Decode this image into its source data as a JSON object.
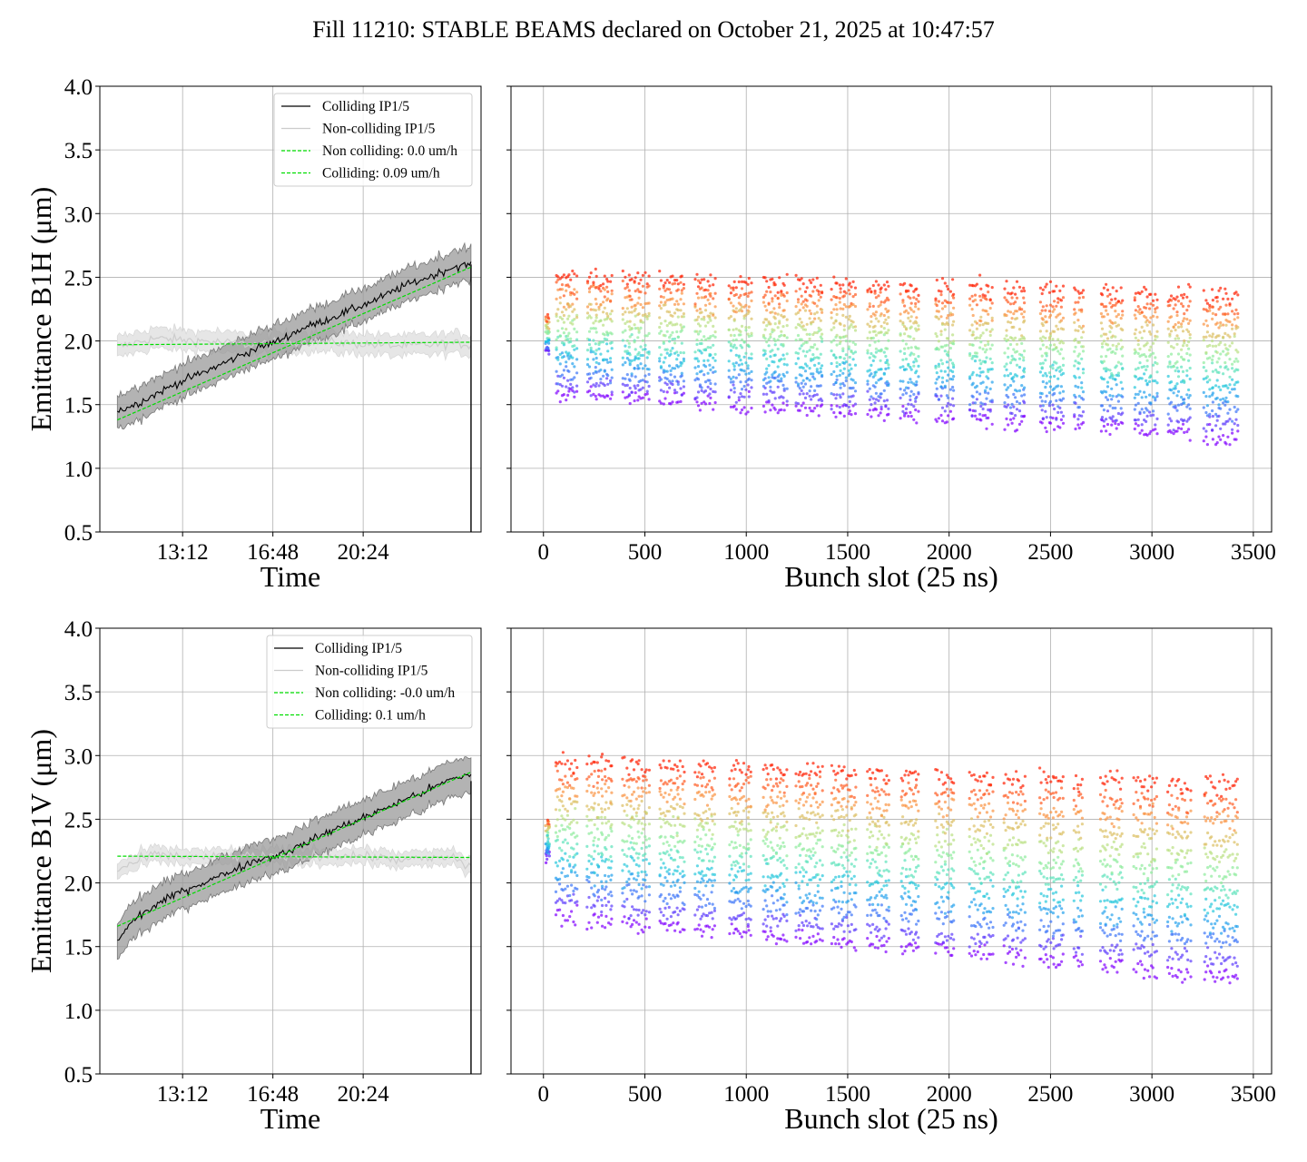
{
  "title": "Fill 11210: STABLE BEAMS declared on October 21, 2025 at 10:47:57",
  "colors": {
    "colliding": "#000000",
    "non_colliding": "#cccccc",
    "fit": "#00dd00",
    "band_colliding": "#999999",
    "band_non_colliding": "#e6e6e6",
    "grid": "#b0b0b0"
  },
  "chart_data": [
    {
      "id": "b1h-time",
      "type": "line",
      "xlabel": "Time",
      "ylabel": "Emittance B1H (μm)",
      "ylim": [
        0.5,
        4.0
      ],
      "yticks": [
        0.5,
        1.0,
        1.5,
        2.0,
        2.5,
        3.0,
        3.5,
        4.0
      ],
      "xlim_hours": [
        9.9,
        25.1
      ],
      "xticks": [
        "13:12",
        "16:48",
        "20:24"
      ],
      "grid": true,
      "legend_position": "top-right",
      "legend": [
        "Colliding IP1/5",
        "Non-colliding IP1/5",
        "Non colliding: 0.0 um/h",
        "Colliding: 0.09 um/h"
      ],
      "series": [
        {
          "name": "Colliding IP1/5",
          "x_hours": [
            10.6,
            11.3,
            12.1,
            13.0,
            14.0,
            15.0,
            16.0,
            17.0,
            18.0,
            19.0,
            20.0,
            21.0,
            22.0,
            23.0,
            24.0,
            24.7
          ],
          "values": [
            1.45,
            1.5,
            1.58,
            1.67,
            1.75,
            1.84,
            1.93,
            2.0,
            2.1,
            2.17,
            2.25,
            2.33,
            2.43,
            2.5,
            2.58,
            2.6
          ],
          "band": 0.13
        },
        {
          "name": "Non-colliding IP1/5",
          "x_hours": [
            10.6,
            12.0,
            14.0,
            16.0,
            18.0,
            20.0,
            22.0,
            24.0,
            24.7
          ],
          "values": [
            1.95,
            2.02,
            2.0,
            1.97,
            2.0,
            1.98,
            1.96,
            1.98,
            1.97
          ],
          "band": 0.08
        },
        {
          "name": "Non colliding: 0.0 um/h",
          "x_hours": [
            10.6,
            24.7
          ],
          "values": [
            1.97,
            1.99
          ]
        },
        {
          "name": "Colliding: 0.09 um/h",
          "x_hours": [
            10.6,
            24.7
          ],
          "values": [
            1.38,
            2.58
          ]
        }
      ],
      "end_drop": [
        2.6,
        0.5
      ]
    },
    {
      "id": "b1h-bunch",
      "type": "scatter",
      "xlabel": "Bunch slot (25 ns)",
      "ylim": [
        0.5,
        4.0
      ],
      "xlim": [
        -160,
        3590
      ],
      "xticks": [
        0,
        500,
        1000,
        1500,
        2000,
        2500,
        3000,
        3500
      ],
      "grid": true,
      "trains": [
        [
          60,
          170
        ],
        [
          215,
          345
        ],
        [
          390,
          525
        ],
        [
          570,
          700
        ],
        [
          745,
          850
        ],
        [
          915,
          1030
        ],
        [
          1080,
          1205
        ],
        [
          1245,
          1380
        ],
        [
          1420,
          1545
        ],
        [
          1595,
          1710
        ],
        [
          1760,
          1855
        ],
        [
          1930,
          2030
        ],
        [
          2100,
          2220
        ],
        [
          2270,
          2380
        ],
        [
          2445,
          2570
        ],
        [
          2615,
          2665
        ],
        [
          2745,
          2860
        ],
        [
          2910,
          3030
        ],
        [
          3075,
          3195
        ],
        [
          3255,
          3430
        ]
      ],
      "band_center_start": 2.05,
      "band_center_end": 1.8,
      "band_halfwidth_start": 0.45,
      "band_halfwidth_end": 0.55
    },
    {
      "id": "b1v-time",
      "type": "line",
      "xlabel": "Time",
      "ylabel": "Emittance B1V (μm)",
      "ylim": [
        0.5,
        4.0
      ],
      "yticks": [
        0.5,
        1.0,
        1.5,
        2.0,
        2.5,
        3.0,
        3.5,
        4.0
      ],
      "xlim_hours": [
        9.9,
        25.1
      ],
      "xticks": [
        "13:12",
        "16:48",
        "20:24"
      ],
      "grid": true,
      "legend_position": "top-right",
      "legend": [
        "Colliding IP1/5",
        "Non-colliding IP1/5",
        "Non colliding: -0.0 um/h",
        "Colliding: 0.1 um/h"
      ],
      "series": [
        {
          "name": "Colliding IP1/5",
          "x_hours": [
            10.6,
            11.3,
            12.1,
            13.0,
            14.0,
            15.0,
            16.0,
            17.0,
            18.0,
            19.0,
            20.0,
            21.0,
            22.0,
            23.0,
            24.0,
            24.7
          ],
          "values": [
            1.55,
            1.72,
            1.82,
            1.92,
            2.0,
            2.08,
            2.17,
            2.22,
            2.3,
            2.4,
            2.48,
            2.56,
            2.65,
            2.73,
            2.82,
            2.85
          ],
          "band": 0.14
        },
        {
          "name": "Non-colliding IP1/5",
          "x_hours": [
            10.6,
            12.0,
            14.0,
            16.0,
            18.0,
            20.0,
            22.0,
            24.0,
            24.7
          ],
          "values": [
            2.1,
            2.22,
            2.2,
            2.21,
            2.2,
            2.22,
            2.18,
            2.2,
            2.12
          ],
          "band": 0.06
        },
        {
          "name": "Non colliding: -0.0 um/h",
          "x_hours": [
            10.6,
            24.7
          ],
          "values": [
            2.21,
            2.2
          ]
        },
        {
          "name": "Colliding: 0.1 um/h",
          "x_hours": [
            10.6,
            24.7
          ],
          "values": [
            1.66,
            2.87
          ]
        }
      ],
      "end_drop": [
        2.8,
        0.5
      ]
    },
    {
      "id": "b1v-bunch",
      "type": "scatter",
      "xlabel": "Bunch slot (25 ns)",
      "ylim": [
        0.5,
        4.0
      ],
      "xlim": [
        -160,
        3590
      ],
      "xticks": [
        0,
        500,
        1000,
        1500,
        2000,
        2500,
        3000,
        3500
      ],
      "grid": true,
      "trains": [
        [
          60,
          170
        ],
        [
          215,
          345
        ],
        [
          390,
          525
        ],
        [
          570,
          700
        ],
        [
          745,
          850
        ],
        [
          915,
          1030
        ],
        [
          1080,
          1205
        ],
        [
          1245,
          1380
        ],
        [
          1420,
          1545
        ],
        [
          1595,
          1710
        ],
        [
          1760,
          1855
        ],
        [
          1930,
          2030
        ],
        [
          2100,
          2220
        ],
        [
          2270,
          2380
        ],
        [
          2445,
          2570
        ],
        [
          2615,
          2665
        ],
        [
          2745,
          2860
        ],
        [
          2910,
          3030
        ],
        [
          3075,
          3195
        ],
        [
          3255,
          3430
        ]
      ],
      "band_center_start": 2.35,
      "band_center_end": 2.0,
      "band_halfwidth_start": 0.6,
      "band_halfwidth_end": 0.75
    }
  ]
}
